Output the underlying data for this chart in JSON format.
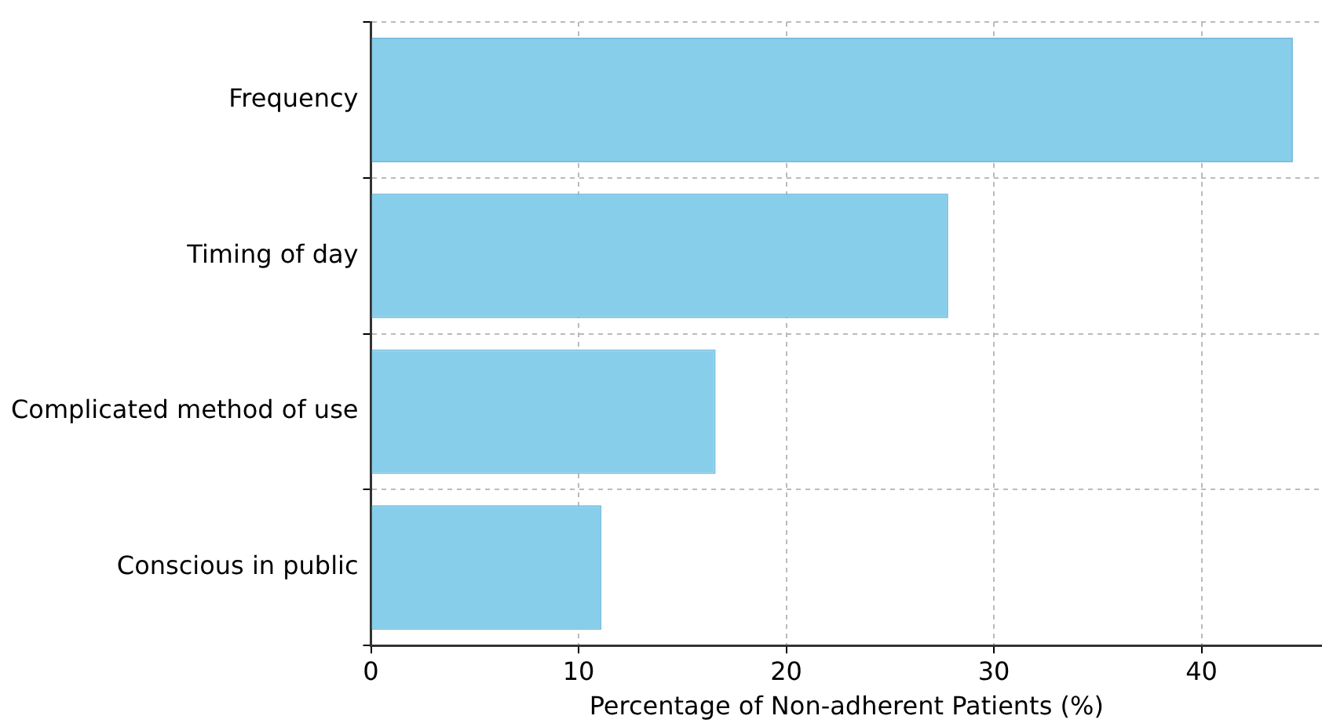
{
  "chart_data": {
    "type": "bar",
    "orientation": "horizontal",
    "xlabel": "Percentage of Non-adherent Patients (%)",
    "categories": [
      "Frequency",
      "Timing of day",
      "Complicated method of use",
      "Conscious in public"
    ],
    "values": [
      44.4,
      27.8,
      16.6,
      11.1
    ],
    "color": "#87ceeb",
    "xlim": [
      0,
      45.8
    ],
    "xticks": [
      0,
      10,
      20,
      30,
      40
    ],
    "grid": true
  }
}
